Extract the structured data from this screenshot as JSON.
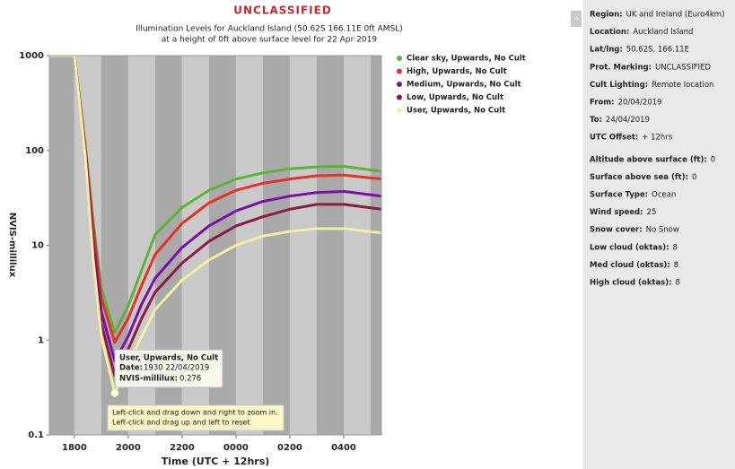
{
  "chart_data": {
    "type": "line",
    "title": "UNCLASSIFIED",
    "subtitle": [
      "Illumination Levels for Auckland Island (50.62S 166.11E 0ft AMSL)",
      "at a height of 0ft above surface level for 22 Apr 2019"
    ],
    "y_label": "NVIS-millilux",
    "x_label": "Time (UTC + 12hrs)",
    "log_y": true,
    "ylim": [
      0.1,
      1000
    ],
    "yticks": [
      1000,
      100,
      10,
      1,
      0.1
    ],
    "xlim": [
      17.07,
      29.4
    ],
    "xticks": [
      {
        "value": 18,
        "label": "1800"
      },
      {
        "value": 20,
        "label": "2000"
      },
      {
        "value": 22,
        "label": "2200"
      },
      {
        "value": 24,
        "label": "0000"
      },
      {
        "value": 26,
        "label": "0200"
      },
      {
        "value": 28,
        "label": "0400"
      }
    ],
    "x": [
      17.07,
      18,
      18.4,
      18.7,
      19,
      19.5,
      20,
      20.5,
      21,
      22,
      23,
      24,
      25,
      26,
      27,
      28,
      29.4
    ],
    "series": [
      {
        "name": "Clear sky, Upwards, No Cult",
        "color": "#5cb335",
        "values": [
          1000,
          1000,
          120,
          18,
          3.5,
          1.2,
          2.3,
          5.5,
          13,
          25,
          38,
          50,
          58,
          64,
          67,
          68,
          60
        ]
      },
      {
        "name": "High, Upwards, No Cult",
        "color": "#e8302a",
        "values": [
          1000,
          1000,
          110,
          15,
          2.8,
          0.95,
          1.7,
          3.8,
          8,
          17,
          28,
          38,
          45,
          50,
          54,
          55,
          50
        ]
      },
      {
        "name": "Medium, Upwards, No Cult",
        "color": "#7b0fa8",
        "values": [
          1000,
          1000,
          100,
          11,
          2,
          0.6,
          1.1,
          2.4,
          4.5,
          9.5,
          16,
          23,
          29,
          33,
          36,
          37,
          33
        ]
      },
      {
        "name": "Low, Upwards, No Cult",
        "color": "#8b1a4a",
        "values": [
          1000,
          1000,
          95,
          9,
          1.5,
          0.42,
          0.8,
          1.7,
          3.2,
          6.5,
          11,
          16,
          20,
          24,
          27,
          27,
          24
        ]
      },
      {
        "name": "User, Upwards, No Cult",
        "color": "#f3efa0",
        "values": [
          1000,
          1000,
          90,
          7,
          1.1,
          0.276,
          0.55,
          1.1,
          2.1,
          4.3,
          7,
          10,
          12.5,
          14,
          15,
          15,
          13.5
        ]
      }
    ],
    "tooltip": {
      "series": "User, Upwards, No Cult",
      "date_label": "Date:",
      "date": "1930 22/04/2019",
      "value_label": "NVIS-millilux:",
      "value": "0.276"
    },
    "help": [
      "Left-click and drag down and right to zoom in.",
      "Left-click and drag up and left to reset"
    ]
  },
  "panel": {
    "toggle": "»",
    "items": [
      {
        "label": "Region:",
        "value": "UK and Ireland (Euro4km)"
      },
      {
        "label": "Location:",
        "value": "Auckland Island"
      },
      {
        "label": "Lat/lng:",
        "value": "50.62S, 166.11E"
      },
      {
        "label": "Prot. Marking:",
        "value": "UNCLASSIFIED"
      },
      {
        "label": "Cult Lighting:",
        "value": "Remote location"
      },
      {
        "label": "From:",
        "value": "20/04/2019"
      },
      {
        "label": "To:",
        "value": "24/04/2019"
      },
      {
        "label": "UTC Offset:",
        "value": "+ 12hrs"
      },
      {
        "label": "Altitude above surface (ft):",
        "value": "0"
      },
      {
        "label": "Surface above sea (ft):",
        "value": "0"
      },
      {
        "label": "Surface Type:",
        "value": "Ocean"
      },
      {
        "label": "Wind speed:",
        "value": "25"
      },
      {
        "label": "Snow cover:",
        "value": "No Snow"
      },
      {
        "label": "Low cloud (oktas):",
        "value": "8"
      },
      {
        "label": "Med cloud (oktas):",
        "value": "8"
      },
      {
        "label": "High cloud (oktas):",
        "value": "8"
      }
    ]
  }
}
